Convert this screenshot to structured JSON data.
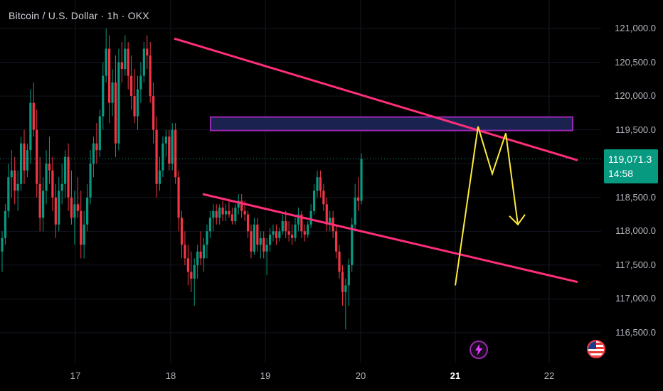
{
  "header": {
    "title": "Bitcoin / U.S. Dollar · 1h · OKX"
  },
  "price_axis": {
    "labels": [
      "121,000.0",
      "120,500.0",
      "120,000.0",
      "119,500.0",
      "118,500.0",
      "118,000.0",
      "117,500.0",
      "117,000.0",
      "116,500.0"
    ]
  },
  "time_axis": {
    "labels": [
      {
        "text": "17",
        "bold": false
      },
      {
        "text": "18",
        "bold": false
      },
      {
        "text": "19",
        "bold": false
      },
      {
        "text": "20",
        "bold": false
      },
      {
        "text": "21",
        "bold": true
      },
      {
        "text": "22",
        "bold": false
      }
    ]
  },
  "last_price": {
    "value": "119,071.3",
    "countdown": "14:58",
    "color": "#089981"
  },
  "colors": {
    "up": "#089981",
    "down": "#f23645",
    "background": "#000000",
    "trendline": "#ff2e7a",
    "zone_fill": "#1a2350",
    "zone_border": "#9c27b0",
    "projection": "#ffeb3b"
  },
  "icons": {
    "event": "lightning-icon",
    "country": "us-flag-icon"
  },
  "chart_data": {
    "type": "candlestick",
    "title": "Bitcoin / U.S. Dollar · 1h · OKX",
    "y_range": [
      116400,
      121300
    ],
    "x_labels": [
      "17",
      "18",
      "19",
      "20",
      "21",
      "22"
    ],
    "last_price": 119071.3,
    "ohlc": [
      {
        "o": 117700,
        "h": 118000,
        "l": 117400,
        "c": 117900
      },
      {
        "o": 117900,
        "h": 118400,
        "l": 117800,
        "c": 118300
      },
      {
        "o": 118300,
        "h": 119000,
        "l": 118200,
        "c": 118800
      },
      {
        "o": 118800,
        "h": 119200,
        "l": 118500,
        "c": 118900
      },
      {
        "o": 118900,
        "h": 119100,
        "l": 118400,
        "c": 118600
      },
      {
        "o": 118600,
        "h": 118900,
        "l": 118300,
        "c": 118700
      },
      {
        "o": 118700,
        "h": 119400,
        "l": 118600,
        "c": 119300
      },
      {
        "o": 119300,
        "h": 119500,
        "l": 118700,
        "c": 118900
      },
      {
        "o": 118900,
        "h": 119300,
        "l": 118800,
        "c": 119200
      },
      {
        "o": 119200,
        "h": 120100,
        "l": 119000,
        "c": 119900
      },
      {
        "o": 119900,
        "h": 120200,
        "l": 119400,
        "c": 119500
      },
      {
        "o": 119500,
        "h": 119800,
        "l": 118500,
        "c": 118700
      },
      {
        "o": 118700,
        "h": 119100,
        "l": 118000,
        "c": 118200
      },
      {
        "o": 118200,
        "h": 118800,
        "l": 118000,
        "c": 118600
      },
      {
        "o": 118600,
        "h": 119200,
        "l": 118400,
        "c": 119000
      },
      {
        "o": 119000,
        "h": 119400,
        "l": 118700,
        "c": 118900
      },
      {
        "o": 118900,
        "h": 119100,
        "l": 118300,
        "c": 118500
      },
      {
        "o": 118500,
        "h": 118700,
        "l": 117900,
        "c": 118100
      },
      {
        "o": 118100,
        "h": 118800,
        "l": 118000,
        "c": 118600
      },
      {
        "o": 118600,
        "h": 119000,
        "l": 118400,
        "c": 118700
      },
      {
        "o": 118700,
        "h": 119200,
        "l": 118500,
        "c": 119100
      },
      {
        "o": 119100,
        "h": 119300,
        "l": 118300,
        "c": 118500
      },
      {
        "o": 118500,
        "h": 118900,
        "l": 118100,
        "c": 118200
      },
      {
        "o": 118200,
        "h": 118600,
        "l": 117800,
        "c": 118400
      },
      {
        "o": 118400,
        "h": 118800,
        "l": 118200,
        "c": 118300
      },
      {
        "o": 118300,
        "h": 118600,
        "l": 117600,
        "c": 117800
      },
      {
        "o": 117800,
        "h": 118300,
        "l": 117600,
        "c": 118100
      },
      {
        "o": 118100,
        "h": 118700,
        "l": 118000,
        "c": 118500
      },
      {
        "o": 118500,
        "h": 119200,
        "l": 118400,
        "c": 119000
      },
      {
        "o": 119000,
        "h": 119400,
        "l": 118800,
        "c": 119300
      },
      {
        "o": 119300,
        "h": 119600,
        "l": 119000,
        "c": 119200
      },
      {
        "o": 119200,
        "h": 119800,
        "l": 119100,
        "c": 119700
      },
      {
        "o": 119700,
        "h": 120500,
        "l": 119500,
        "c": 120300
      },
      {
        "o": 120300,
        "h": 121000,
        "l": 120200,
        "c": 120700
      },
      {
        "o": 120700,
        "h": 120900,
        "l": 119600,
        "c": 119900
      },
      {
        "o": 119900,
        "h": 120400,
        "l": 119700,
        "c": 120200
      },
      {
        "o": 120200,
        "h": 120600,
        "l": 119100,
        "c": 119300
      },
      {
        "o": 119300,
        "h": 120700,
        "l": 119200,
        "c": 120500
      },
      {
        "o": 120500,
        "h": 120800,
        "l": 120200,
        "c": 120400
      },
      {
        "o": 120400,
        "h": 120900,
        "l": 120300,
        "c": 120700
      },
      {
        "o": 120700,
        "h": 120800,
        "l": 120100,
        "c": 120300
      },
      {
        "o": 120300,
        "h": 120600,
        "l": 119800,
        "c": 120000
      },
      {
        "o": 120000,
        "h": 120400,
        "l": 119600,
        "c": 119700
      },
      {
        "o": 119700,
        "h": 120300,
        "l": 119500,
        "c": 120100
      },
      {
        "o": 120100,
        "h": 120500,
        "l": 119900,
        "c": 120300
      },
      {
        "o": 120300,
        "h": 120800,
        "l": 120200,
        "c": 120700
      },
      {
        "o": 120700,
        "h": 120900,
        "l": 120400,
        "c": 120600
      },
      {
        "o": 120600,
        "h": 120800,
        "l": 119900,
        "c": 120000
      },
      {
        "o": 120000,
        "h": 120200,
        "l": 119300,
        "c": 119500
      },
      {
        "o": 119500,
        "h": 119700,
        "l": 118500,
        "c": 118700
      },
      {
        "o": 118700,
        "h": 119100,
        "l": 118600,
        "c": 118900
      },
      {
        "o": 118900,
        "h": 119400,
        "l": 118800,
        "c": 119300
      },
      {
        "o": 119300,
        "h": 119500,
        "l": 119100,
        "c": 119400
      },
      {
        "o": 119400,
        "h": 119500,
        "l": 118900,
        "c": 119000
      },
      {
        "o": 119000,
        "h": 119600,
        "l": 118900,
        "c": 119500
      },
      {
        "o": 119500,
        "h": 119600,
        "l": 118700,
        "c": 118800
      },
      {
        "o": 118800,
        "h": 118900,
        "l": 118000,
        "c": 118200
      },
      {
        "o": 118200,
        "h": 118300,
        "l": 117600,
        "c": 117800
      },
      {
        "o": 117800,
        "h": 118000,
        "l": 117500,
        "c": 117600
      },
      {
        "o": 117600,
        "h": 117800,
        "l": 117200,
        "c": 117400
      },
      {
        "o": 117400,
        "h": 117700,
        "l": 117100,
        "c": 117300
      },
      {
        "o": 117300,
        "h": 117600,
        "l": 116900,
        "c": 117500
      },
      {
        "o": 117500,
        "h": 117800,
        "l": 117300,
        "c": 117700
      },
      {
        "o": 117700,
        "h": 118000,
        "l": 117500,
        "c": 117600
      },
      {
        "o": 117600,
        "h": 117900,
        "l": 117400,
        "c": 117800
      },
      {
        "o": 117800,
        "h": 118100,
        "l": 117600,
        "c": 118000
      },
      {
        "o": 118000,
        "h": 118300,
        "l": 117900,
        "c": 118200
      },
      {
        "o": 118200,
        "h": 118400,
        "l": 118000,
        "c": 118300
      },
      {
        "o": 118300,
        "h": 118400,
        "l": 118100,
        "c": 118200
      },
      {
        "o": 118200,
        "h": 118400,
        "l": 118100,
        "c": 118350
      },
      {
        "o": 118350,
        "h": 118450,
        "l": 118150,
        "c": 118250
      },
      {
        "o": 118250,
        "h": 118400,
        "l": 118150,
        "c": 118300
      },
      {
        "o": 118300,
        "h": 118450,
        "l": 118200,
        "c": 118250
      },
      {
        "o": 118250,
        "h": 118350,
        "l": 118100,
        "c": 118150
      },
      {
        "o": 118150,
        "h": 118400,
        "l": 118100,
        "c": 118350
      },
      {
        "o": 118350,
        "h": 118550,
        "l": 118250,
        "c": 118450
      },
      {
        "o": 118450,
        "h": 118550,
        "l": 118200,
        "c": 118300
      },
      {
        "o": 118300,
        "h": 118450,
        "l": 118150,
        "c": 118250
      },
      {
        "o": 118250,
        "h": 118300,
        "l": 117900,
        "c": 118000
      },
      {
        "o": 118000,
        "h": 118100,
        "l": 117600,
        "c": 117700
      },
      {
        "o": 117700,
        "h": 118200,
        "l": 117650,
        "c": 118100
      },
      {
        "o": 118100,
        "h": 118200,
        "l": 117700,
        "c": 117800
      },
      {
        "o": 117800,
        "h": 118000,
        "l": 117600,
        "c": 117900
      },
      {
        "o": 117900,
        "h": 118000,
        "l": 117600,
        "c": 117700
      },
      {
        "o": 117700,
        "h": 117900,
        "l": 117350,
        "c": 117800
      },
      {
        "o": 117800,
        "h": 118050,
        "l": 117700,
        "c": 117950
      },
      {
        "o": 117950,
        "h": 118100,
        "l": 117850,
        "c": 118000
      },
      {
        "o": 118000,
        "h": 118100,
        "l": 117800,
        "c": 117900
      },
      {
        "o": 117900,
        "h": 118050,
        "l": 117850,
        "c": 118000
      },
      {
        "o": 118000,
        "h": 118250,
        "l": 117950,
        "c": 118150
      },
      {
        "o": 118150,
        "h": 118300,
        "l": 117900,
        "c": 118000
      },
      {
        "o": 118000,
        "h": 118150,
        "l": 117850,
        "c": 117950
      },
      {
        "o": 117950,
        "h": 118100,
        "l": 117800,
        "c": 117900
      },
      {
        "o": 117900,
        "h": 118200,
        "l": 117850,
        "c": 118100
      },
      {
        "o": 118100,
        "h": 118350,
        "l": 118000,
        "c": 118250
      },
      {
        "o": 118250,
        "h": 118300,
        "l": 117900,
        "c": 118000
      },
      {
        "o": 118000,
        "h": 118100,
        "l": 117850,
        "c": 117950
      },
      {
        "o": 117950,
        "h": 118150,
        "l": 117900,
        "c": 118100
      },
      {
        "o": 118100,
        "h": 118400,
        "l": 118050,
        "c": 118300
      },
      {
        "o": 118300,
        "h": 118700,
        "l": 118250,
        "c": 118600
      },
      {
        "o": 118600,
        "h": 118900,
        "l": 118500,
        "c": 118800
      },
      {
        "o": 118800,
        "h": 118900,
        "l": 118500,
        "c": 118600
      },
      {
        "o": 118600,
        "h": 118700,
        "l": 118300,
        "c": 118400
      },
      {
        "o": 118400,
        "h": 118500,
        "l": 118000,
        "c": 118100
      },
      {
        "o": 118100,
        "h": 118300,
        "l": 118000,
        "c": 118200
      },
      {
        "o": 118200,
        "h": 118300,
        "l": 117900,
        "c": 118000
      },
      {
        "o": 118000,
        "h": 118100,
        "l": 117600,
        "c": 117700
      },
      {
        "o": 117700,
        "h": 117800,
        "l": 117300,
        "c": 117400
      },
      {
        "o": 117400,
        "h": 117500,
        "l": 116900,
        "c": 117100
      },
      {
        "o": 117100,
        "h": 117300,
        "l": 116550,
        "c": 117200
      },
      {
        "o": 117200,
        "h": 117600,
        "l": 116900,
        "c": 117500
      },
      {
        "o": 117500,
        "h": 118200,
        "l": 117400,
        "c": 118100
      },
      {
        "o": 118100,
        "h": 118700,
        "l": 118000,
        "c": 118500
      },
      {
        "o": 118500,
        "h": 118800,
        "l": 118300,
        "c": 118450
      },
      {
        "o": 118450,
        "h": 119150,
        "l": 118400,
        "c": 119071
      }
    ],
    "trendlines": [
      {
        "name": "upper",
        "from": {
          "x": "17-Jul 23:00",
          "y": 120850
        },
        "to": {
          "x": "22-Jul 06:00",
          "y": 119050
        }
      },
      {
        "name": "lower",
        "from": {
          "x": "18-Jul 08:00",
          "y": 118550
        },
        "to": {
          "x": "22-Jul 06:00",
          "y": 117250
        }
      }
    ],
    "zone": {
      "y_low": 119490,
      "y_high": 119690
    },
    "projection": [
      117200,
      119550,
      118850,
      119450,
      118100
    ]
  }
}
